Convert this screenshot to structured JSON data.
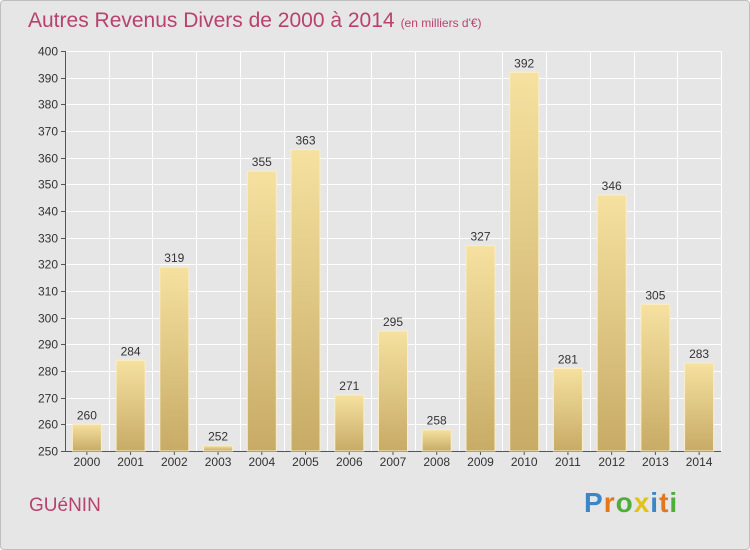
{
  "title": "Autres Revenus Divers de 2000 à 2014",
  "subtitle": "(en milliers d'€)",
  "location": "GUéNIN",
  "logo": {
    "letters": [
      {
        "ch": "P",
        "color": "#3a86c8"
      },
      {
        "ch": "r",
        "color": "#e2781e"
      },
      {
        "ch": "o",
        "color": "#4fae3a"
      },
      {
        "ch": "x",
        "color": "#e2c21a"
      },
      {
        "ch": "i",
        "color": "#3a86c8"
      },
      {
        "ch": "t",
        "color": "#e2781e"
      },
      {
        "ch": "i",
        "color": "#4fae3a"
      }
    ]
  },
  "colors": {
    "title": "#b8426e",
    "bar_top": "#f6e1a0",
    "bar_bottom": "#c7ab66",
    "bar_edge": "#f8eec8",
    "grid": "#ffffff",
    "background": "#e6e6e6"
  },
  "chart_data": {
    "type": "bar",
    "categories": [
      "2000",
      "2001",
      "2002",
      "2003",
      "2004",
      "2005",
      "2006",
      "2007",
      "2008",
      "2009",
      "2010",
      "2011",
      "2012",
      "2013",
      "2014"
    ],
    "values": [
      260,
      284,
      319,
      252,
      355,
      363,
      271,
      295,
      258,
      327,
      392,
      281,
      346,
      305,
      283
    ],
    "ylim": [
      250,
      400
    ],
    "yticks": [
      250,
      260,
      270,
      280,
      290,
      300,
      310,
      320,
      330,
      340,
      350,
      360,
      370,
      380,
      390,
      400
    ],
    "grid": true,
    "data_labels": true,
    "xlabel": "",
    "ylabel": ""
  }
}
